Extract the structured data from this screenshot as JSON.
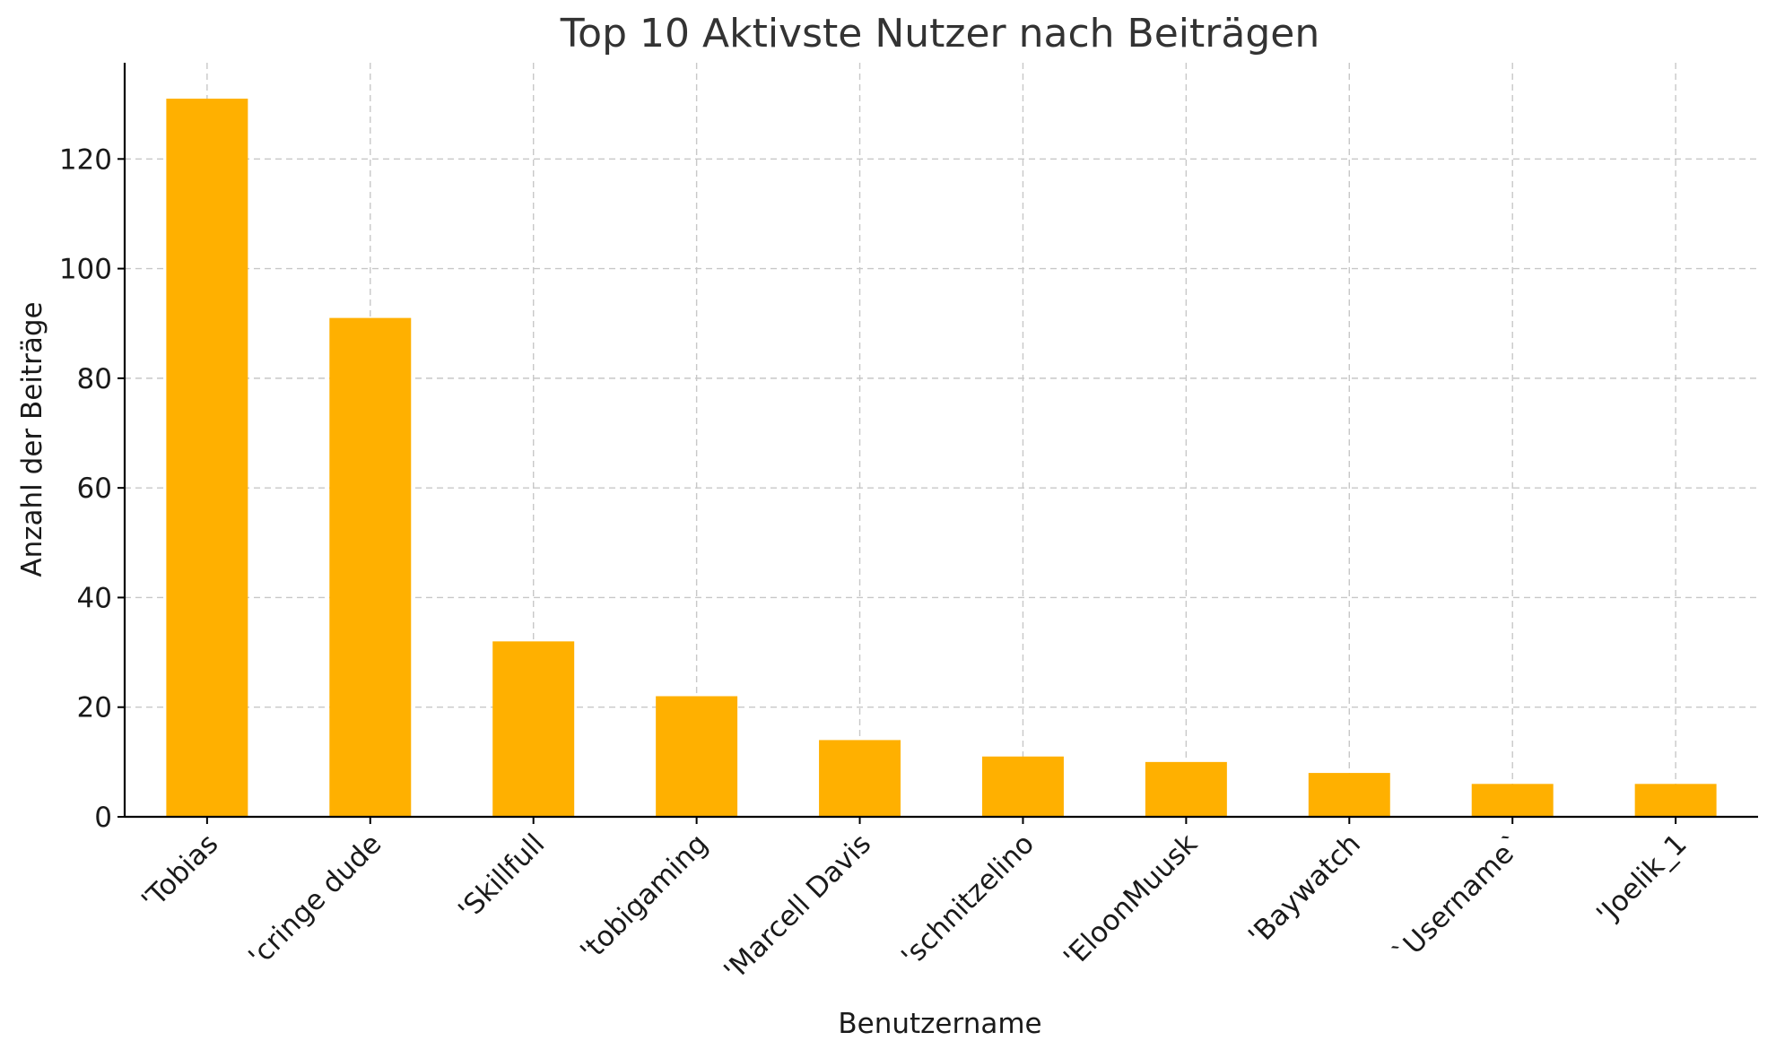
{
  "chart_data": {
    "type": "bar",
    "title": "Top 10 Aktivste Nutzer nach Beiträgen",
    "xlabel": "Benutzername",
    "ylabel": "Anzahl der Beiträge",
    "categories": [
      "'Tobias",
      "'cringe dude",
      "'Skillfull",
      "'tobigaming",
      "'Marcell Davis",
      "'schnitzelino",
      "'EloonMuusk",
      "'Baywatch",
      "`Username`",
      "'Joelik_1"
    ],
    "values": [
      131,
      91,
      32,
      22,
      14,
      11,
      10,
      8,
      6,
      6
    ],
    "ylim": [
      0,
      137.55
    ],
    "yticks": [
      0,
      20,
      40,
      60,
      80,
      100,
      120
    ],
    "grid": true,
    "bar_color": "#FFB000",
    "x_tick_rotation": -45
  }
}
